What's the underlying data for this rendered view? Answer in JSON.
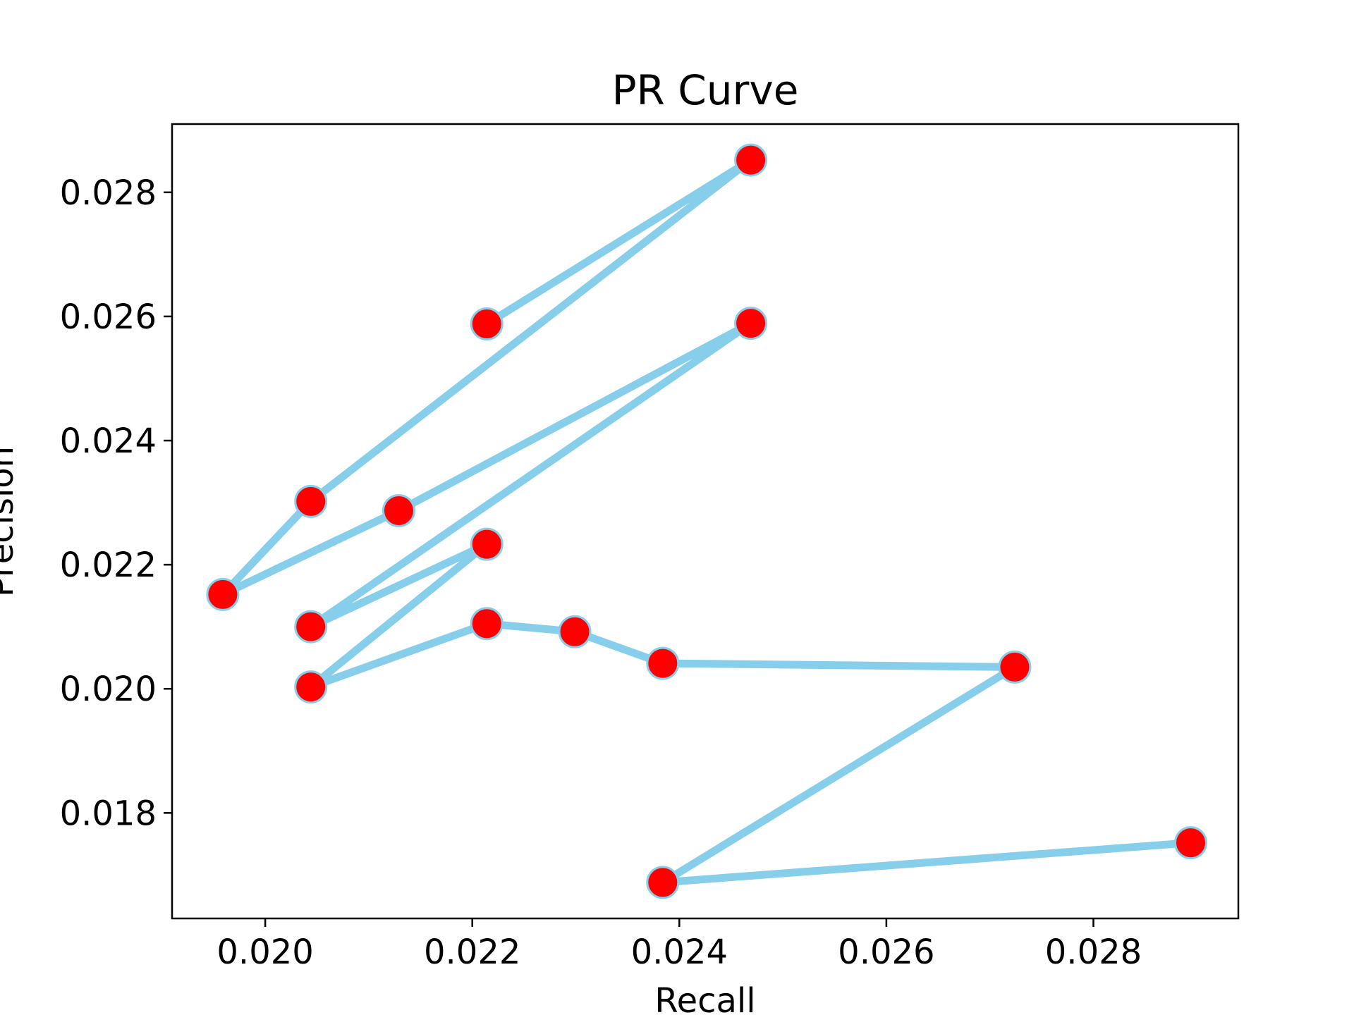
{
  "chart_data": {
    "type": "line",
    "title": "PR Curve",
    "xlabel": "Recall",
    "ylabel": "Precision",
    "xlim": [
      0.0191,
      0.0294
    ],
    "ylim": [
      0.0163,
      0.0291
    ],
    "xticks": [
      0.02,
      0.022,
      0.024,
      0.026,
      0.028
    ],
    "xtick_labels": [
      "0.020",
      "0.022",
      "0.024",
      "0.026",
      "0.028"
    ],
    "yticks": [
      0.018,
      0.02,
      0.022,
      0.024,
      0.026,
      0.028
    ],
    "ytick_labels": [
      "0.018",
      "0.020",
      "0.022",
      "0.024",
      "0.026",
      "0.028"
    ],
    "grid": false,
    "legend": false,
    "series": [
      {
        "line_color": "#87ceeb",
        "marker_color": "#ff0000",
        "marker_edge_color": "#87ceeb",
        "x": [
          0.02214,
          0.02469,
          0.02044,
          0.01959,
          0.02129,
          0.02469,
          0.02044,
          0.02214,
          0.02044,
          0.02214,
          0.02299,
          0.02384,
          0.02724,
          0.02384,
          0.02894
        ],
        "y": [
          0.02588,
          0.02852,
          0.02302,
          0.02152,
          0.02287,
          0.02589,
          0.021,
          0.02233,
          0.02003,
          0.02105,
          0.02092,
          0.02041,
          0.02035,
          0.01688,
          0.01752
        ]
      }
    ]
  }
}
